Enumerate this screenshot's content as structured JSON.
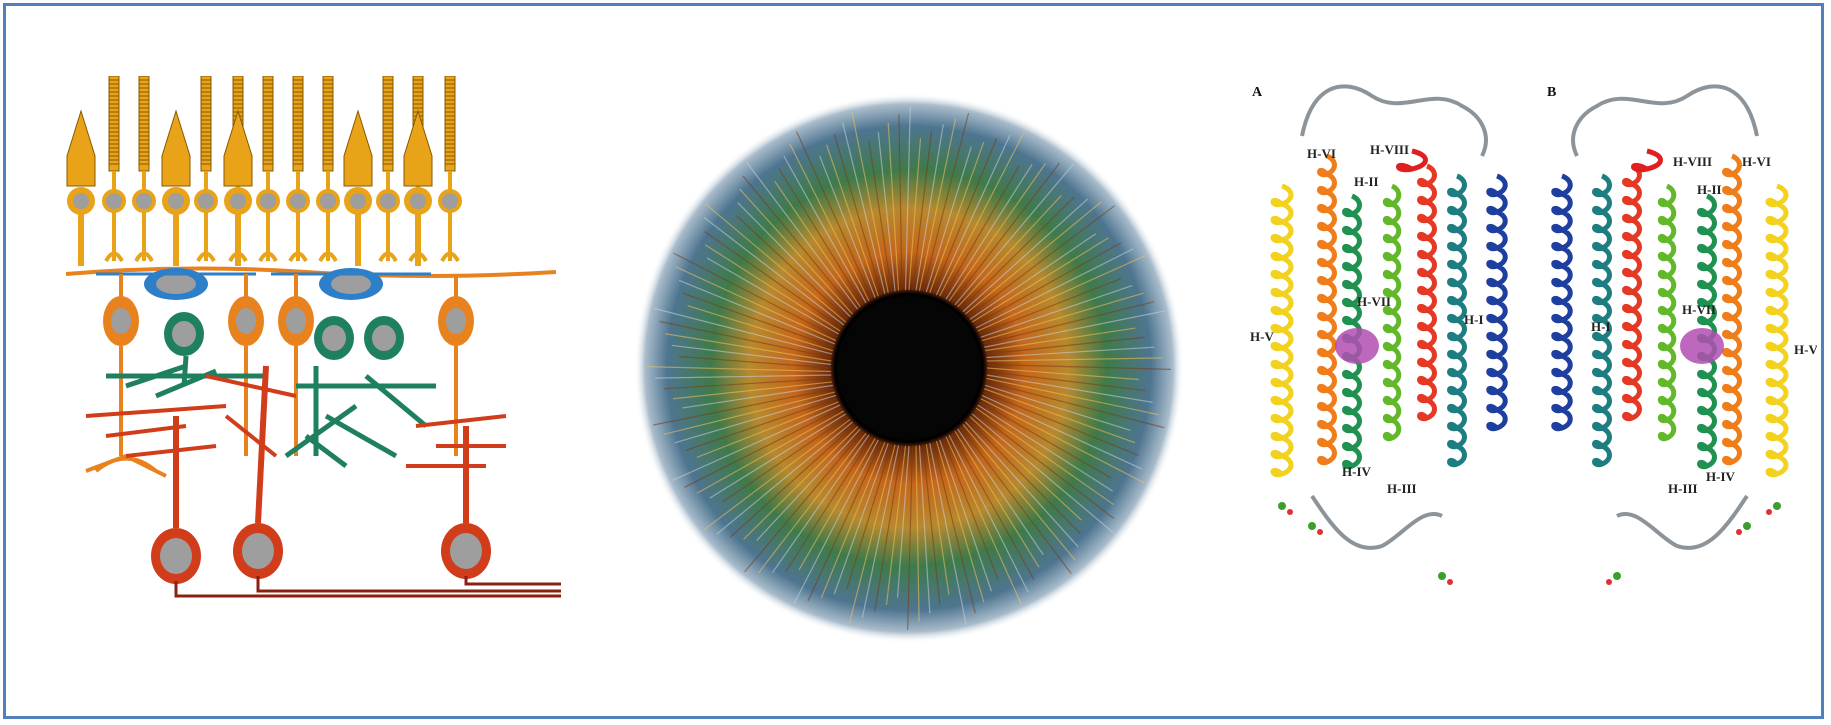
{
  "colors": {
    "frame": "#4f81bd",
    "photoreceptor": "#e8a318",
    "horizontal": "#2d7fc7",
    "bipolar": "#e8821e",
    "amacrine": "#1e8060",
    "ganglion": "#d13c1a",
    "nucleus": "#9e9e9e",
    "iris_outer": "#4e7590",
    "iris_mid": "#3f7a4a",
    "iris_inner": "#c4661b",
    "pupil": "#050505"
  },
  "figure": {
    "panel_a_label": "A",
    "panel_b_label": "B",
    "helices_a": [
      "H-VI",
      "H-VIII",
      "H-II",
      "H-VII",
      "H-V",
      "H-I",
      "H-IV",
      "H-III"
    ],
    "helices_b": [
      "H-VIII",
      "H-VI",
      "H-II",
      "H-I",
      "H-VII",
      "H-V",
      "H-III",
      "H-IV"
    ]
  }
}
